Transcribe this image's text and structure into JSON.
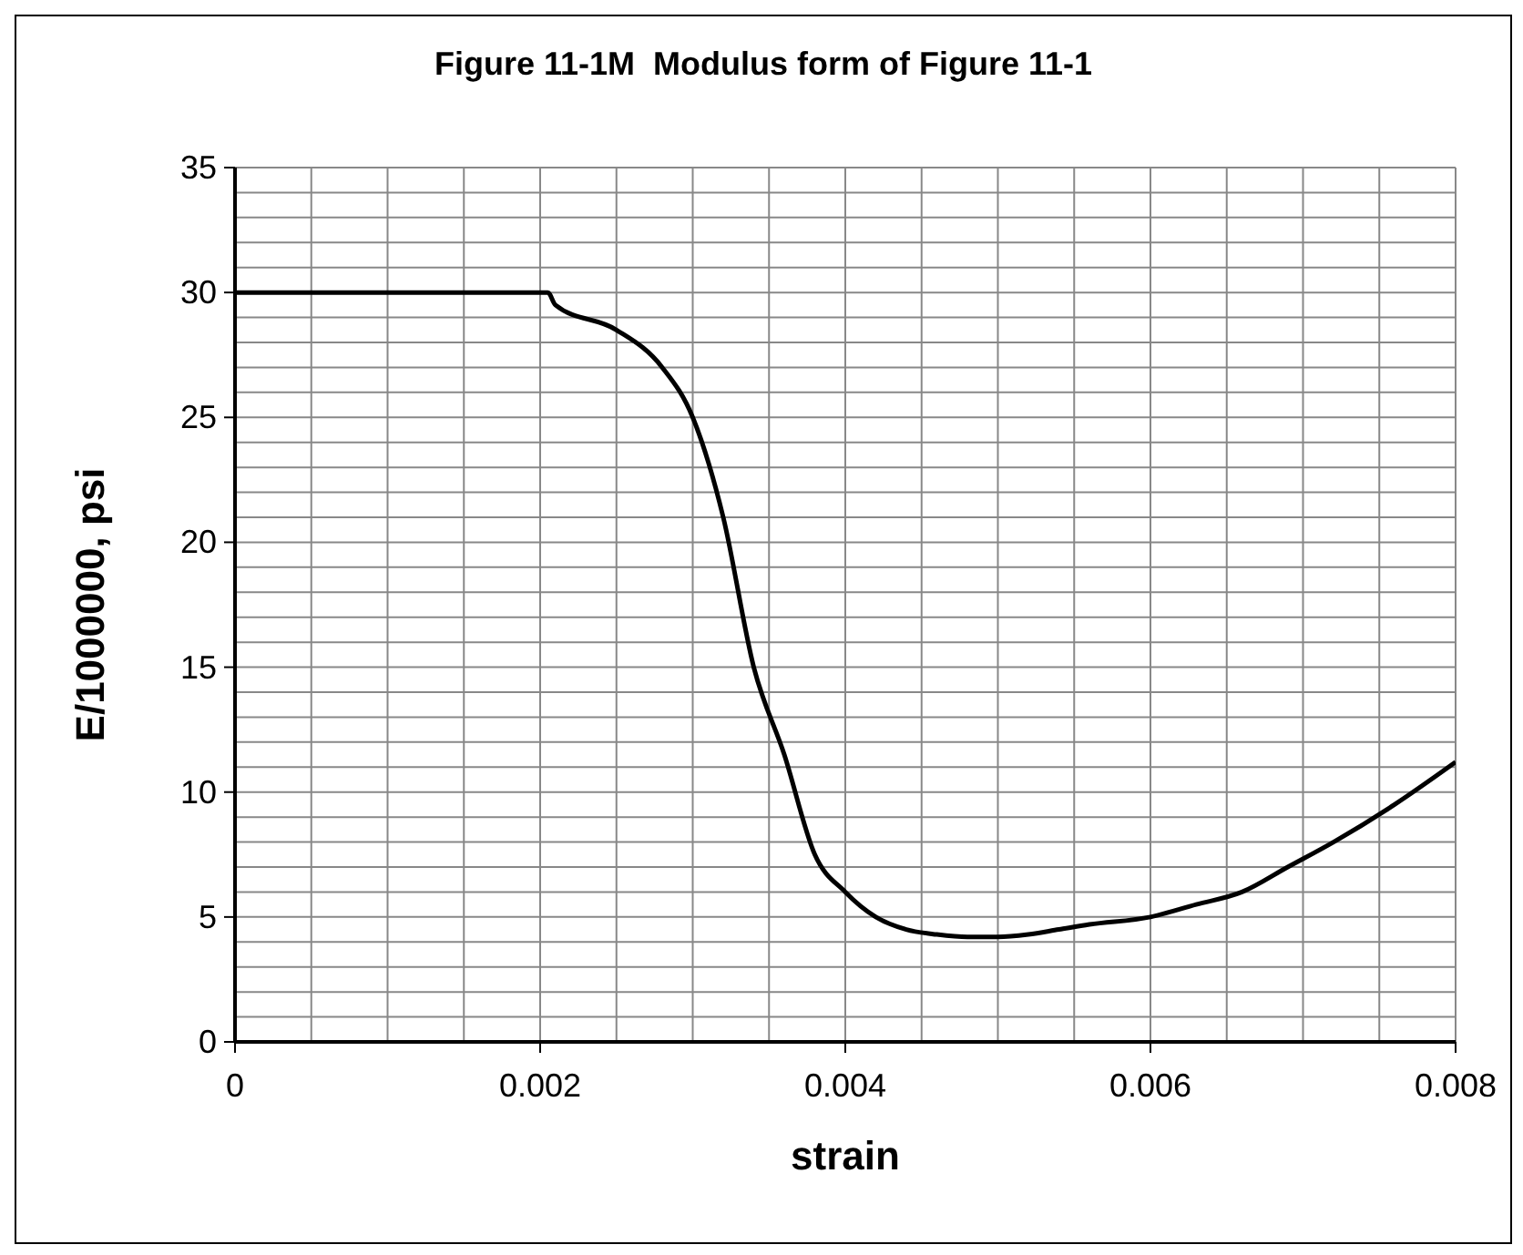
{
  "chart_data": {
    "type": "line",
    "title": "Figure 11-1M  Modulus form of Figure 11-1",
    "xlabel": "strain",
    "ylabel": "E/1000000, psi",
    "x": [
      0,
      0.001,
      0.002,
      0.00205,
      0.0021,
      0.0025,
      0.0028,
      0.003,
      0.0032,
      0.0034,
      0.0036,
      0.0038,
      0.004,
      0.0042,
      0.0044,
      0.0046,
      0.0048,
      0.005,
      0.0052,
      0.0054,
      0.0056,
      0.006,
      0.0063,
      0.0066,
      0.0069,
      0.0072,
      0.0076,
      0.008
    ],
    "series": [
      {
        "color": "#000000",
        "values": [
          30,
          30,
          30,
          30,
          29.5,
          28.5,
          27,
          25,
          21,
          15,
          11.5,
          7.5,
          6,
          5,
          4.5,
          4.3,
          4.2,
          4.2,
          4.3,
          4.5,
          4.7,
          5,
          5.5,
          6,
          7,
          8,
          9.5,
          11.2
        ]
      }
    ],
    "xlim": [
      0,
      0.008
    ],
    "ylim": [
      0,
      35
    ],
    "xticks": [
      0,
      {
        "value": 0.0005,
        "label": null
      },
      {
        "value": 0.001,
        "label": null
      },
      {
        "value": 0.0015,
        "label": null
      },
      0.002,
      {
        "value": 0.0025,
        "label": null
      },
      {
        "value": 0.003,
        "label": null
      },
      {
        "value": 0.0035,
        "label": null
      },
      0.004,
      {
        "value": 0.0045,
        "label": null
      },
      {
        "value": 0.005,
        "label": null
      },
      {
        "value": 0.0055,
        "label": null
      },
      0.006,
      {
        "value": 0.0065,
        "label": null
      },
      {
        "value": 0.007,
        "label": null
      },
      {
        "value": 0.0075,
        "label": null
      },
      0.008
    ],
    "yticks": [
      0,
      {
        "value": 1,
        "label": null
      },
      {
        "value": 2,
        "label": null
      },
      {
        "value": 3,
        "label": null
      },
      {
        "value": 4,
        "label": null
      },
      5,
      {
        "value": 6,
        "label": null
      },
      {
        "value": 7,
        "label": null
      },
      {
        "value": 8,
        "label": null
      },
      {
        "value": 9,
        "label": null
      },
      10,
      {
        "value": 11,
        "label": null
      },
      {
        "value": 12,
        "label": null
      },
      {
        "value": 13,
        "label": null
      },
      {
        "value": 14,
        "label": null
      },
      15,
      {
        "value": 16,
        "label": null
      },
      {
        "value": 17,
        "label": null
      },
      {
        "value": 18,
        "label": null
      },
      {
        "value": 19,
        "label": null
      },
      20,
      {
        "value": 21,
        "label": null
      },
      {
        "value": 22,
        "label": null
      },
      {
        "value": 23,
        "label": null
      },
      {
        "value": 24,
        "label": null
      },
      25,
      {
        "value": 26,
        "label": null
      },
      {
        "value": 27,
        "label": null
      },
      {
        "value": 28,
        "label": null
      },
      {
        "value": 29,
        "label": null
      },
      30,
      {
        "value": 31,
        "label": null
      },
      {
        "value": 32,
        "label": null
      },
      {
        "value": 33,
        "label": null
      },
      {
        "value": 34,
        "label": null
      },
      35
    ],
    "grid": true,
    "marker": "none",
    "line_style": "solid"
  }
}
